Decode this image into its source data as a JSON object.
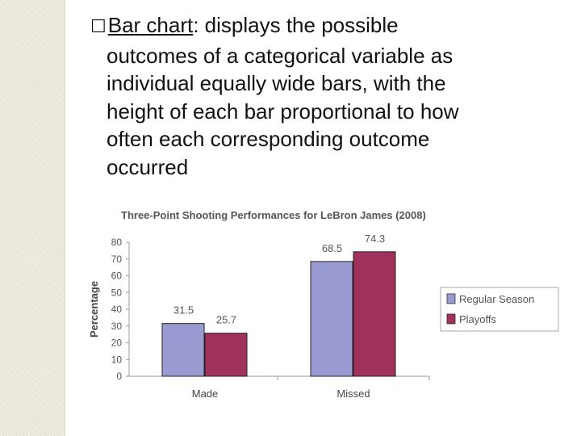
{
  "slide": {
    "bullet_glyph": "☐",
    "term": "Bar chart",
    "lines": [
      ": displays the possible",
      "outcomes of a categorical variable as",
      "individual equally wide bars, with the",
      "height of each bar proportional to how",
      "often each corresponding outcome",
      "occurred"
    ]
  },
  "chart_data": {
    "type": "bar",
    "title": "Three-Point Shooting Performances for LeBron James (2008)",
    "xlabel": "",
    "ylabel": "Percentage",
    "categories": [
      "Made",
      "Missed"
    ],
    "series": [
      {
        "name": "Regular Season",
        "values": [
          31.5,
          68.5
        ],
        "color": "#9a9ad2"
      },
      {
        "name": "Playoffs",
        "values": [
          25.7,
          74.3
        ],
        "color": "#a0305c"
      }
    ],
    "ylim": [
      0,
      80
    ],
    "yticks": [
      0,
      10,
      20,
      30,
      40,
      50,
      60,
      70,
      80
    ],
    "legend_position": "right",
    "grid": false
  }
}
